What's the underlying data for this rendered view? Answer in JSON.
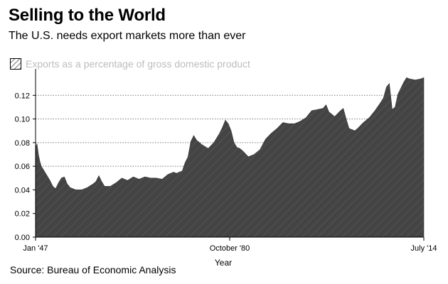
{
  "title": "Selling to the World",
  "subtitle": "The U.S. needs export markets more than ever",
  "source": "Source: Bureau of Economic Analysis",
  "colors": {
    "fill": "#444444",
    "grid": "#777777",
    "legend_text": "#bdbdbd"
  },
  "chart_data": {
    "type": "area",
    "title": "Selling to the World",
    "subtitle": "The U.S. needs export markets more than ever",
    "xlabel": "Year",
    "ylabel": "",
    "legend": {
      "entries": [
        "Exports as a percentage of gross domestic product"
      ],
      "placement": "top-left"
    },
    "x_tick_labels": [
      "Jan '47",
      "October '80",
      "July '14"
    ],
    "x_ticks": [
      1947.0,
      1980.75,
      2014.5
    ],
    "y_ticks": [
      0.0,
      0.02,
      0.04,
      0.06,
      0.08,
      0.1,
      0.12
    ],
    "y_tick_labels": [
      "0.00",
      "0.02",
      "0.04",
      "0.06",
      "0.08",
      "0.10",
      "0.12"
    ],
    "xlim": [
      1947.0,
      2014.5
    ],
    "ylim": [
      0.0,
      0.14
    ],
    "grid": "horizontal dotted",
    "series": [
      {
        "name": "Exports as a percentage of gross domestic product",
        "x": [
          1947.0,
          1947.25,
          1947.5,
          1947.75,
          1948.0,
          1948.5,
          1949.0,
          1949.5,
          1950.0,
          1950.5,
          1951.0,
          1951.5,
          1952.0,
          1952.5,
          1953.0,
          1954.0,
          1955.0,
          1956.0,
          1957.0,
          1957.5,
          1958.0,
          1958.5,
          1959.0,
          1960.0,
          1961.0,
          1962.0,
          1963.0,
          1964.0,
          1965.0,
          1966.0,
          1967.0,
          1968.0,
          1969.0,
          1970.0,
          1971.0,
          1971.5,
          1972.0,
          1972.5,
          1973.0,
          1973.5,
          1974.0,
          1974.5,
          1975.0,
          1975.5,
          1976.0,
          1977.0,
          1978.0,
          1979.0,
          1979.5,
          1980.0,
          1980.5,
          1981.0,
          1981.5,
          1982.0,
          1982.5,
          1983.0,
          1984.0,
          1985.0,
          1986.0,
          1987.0,
          1988.0,
          1989.0,
          1990.0,
          1991.0,
          1992.0,
          1993.0,
          1994.0,
          1995.0,
          1996.0,
          1997.0,
          1997.5,
          1998.0,
          1999.0,
          2000.0,
          2000.5,
          2001.0,
          2001.5,
          2002.0,
          2002.5,
          2003.0,
          2004.0,
          2005.0,
          2006.0,
          2007.0,
          2007.5,
          2008.0,
          2008.5,
          2009.0,
          2009.5,
          2010.0,
          2011.0,
          2011.5,
          2012.0,
          2013.0,
          2014.0,
          2014.5
        ],
        "values": [
          0.076,
          0.079,
          0.07,
          0.064,
          0.06,
          0.056,
          0.052,
          0.048,
          0.043,
          0.041,
          0.046,
          0.05,
          0.051,
          0.045,
          0.042,
          0.04,
          0.04,
          0.042,
          0.045,
          0.047,
          0.052,
          0.047,
          0.043,
          0.043,
          0.046,
          0.05,
          0.048,
          0.051,
          0.049,
          0.051,
          0.05,
          0.05,
          0.049,
          0.053,
          0.055,
          0.054,
          0.055,
          0.056,
          0.063,
          0.068,
          0.081,
          0.086,
          0.082,
          0.08,
          0.078,
          0.075,
          0.08,
          0.088,
          0.093,
          0.099,
          0.096,
          0.09,
          0.08,
          0.076,
          0.075,
          0.073,
          0.068,
          0.07,
          0.074,
          0.083,
          0.088,
          0.092,
          0.097,
          0.096,
          0.096,
          0.098,
          0.101,
          0.107,
          0.108,
          0.109,
          0.112,
          0.106,
          0.102,
          0.107,
          0.109,
          0.1,
          0.092,
          0.091,
          0.09,
          0.092,
          0.097,
          0.101,
          0.107,
          0.114,
          0.118,
          0.127,
          0.13,
          0.108,
          0.11,
          0.121,
          0.131,
          0.135,
          0.134,
          0.133,
          0.134,
          0.135
        ]
      }
    ]
  }
}
